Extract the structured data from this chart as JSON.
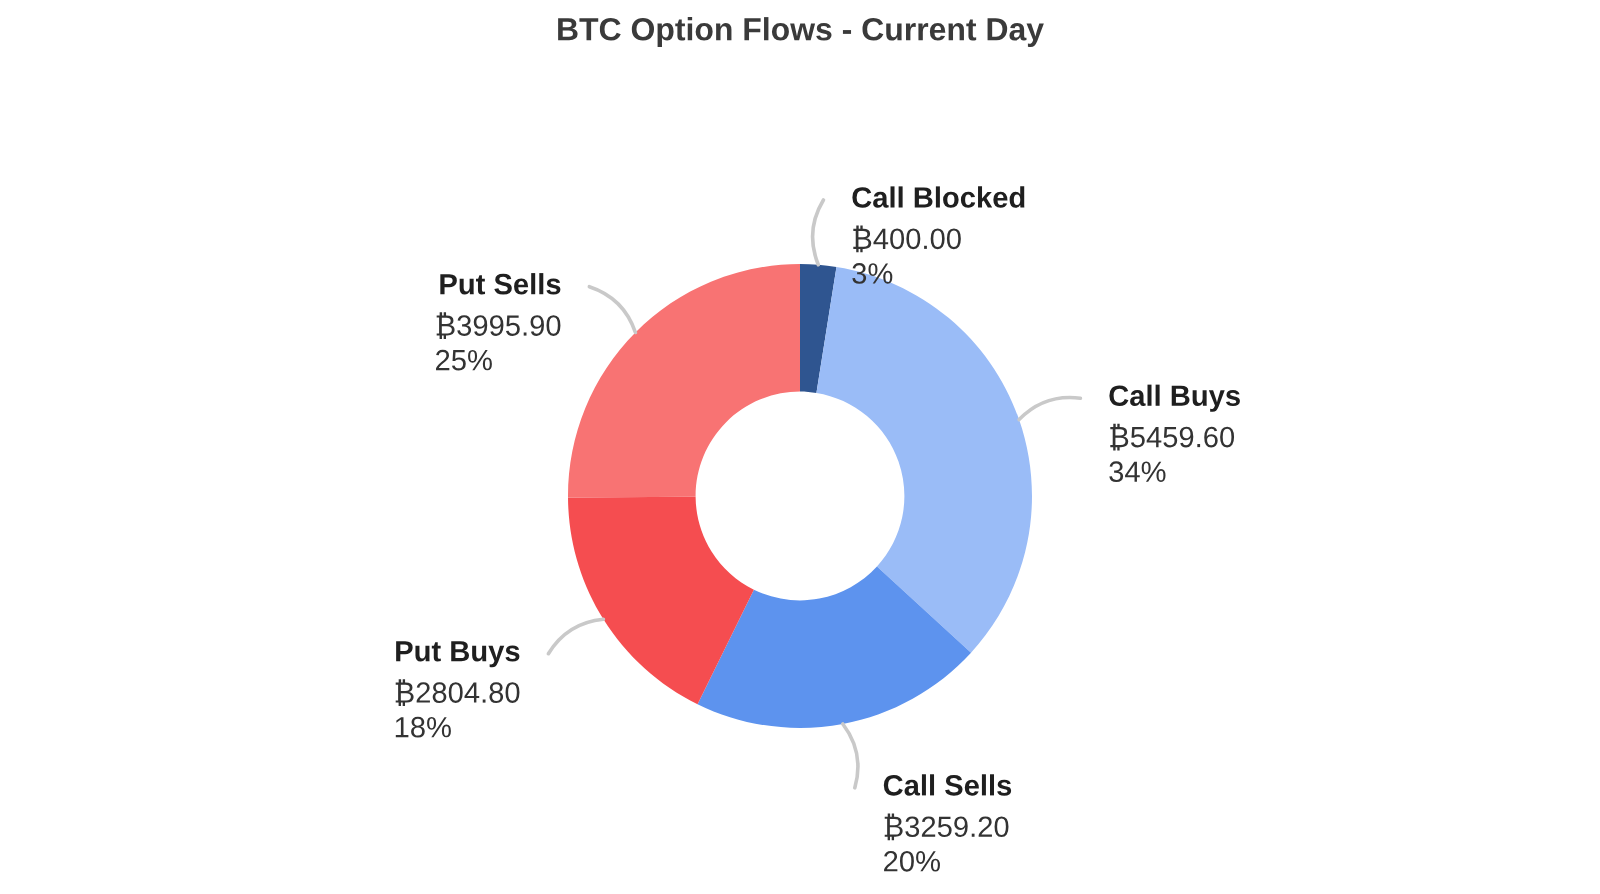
{
  "chart_data": {
    "type": "donut",
    "title": "BTC Option Flows - Current Day",
    "categories": [
      "Call Blocked",
      "Call Buys",
      "Call Sells",
      "Put Buys",
      "Put Sells"
    ],
    "values": [
      400.0,
      5459.6,
      3259.2,
      2804.8,
      3995.9
    ],
    "colors": [
      "#2f5590",
      "#9abcf7",
      "#5d93ee",
      "#f54d50",
      "#f87373"
    ],
    "value_labels": [
      "₿400.00\n3%",
      "₿5459.60\n34%",
      "₿3259.20\n20%",
      "₿2804.80\n18%",
      "₿3995.90\n25%"
    ]
  }
}
